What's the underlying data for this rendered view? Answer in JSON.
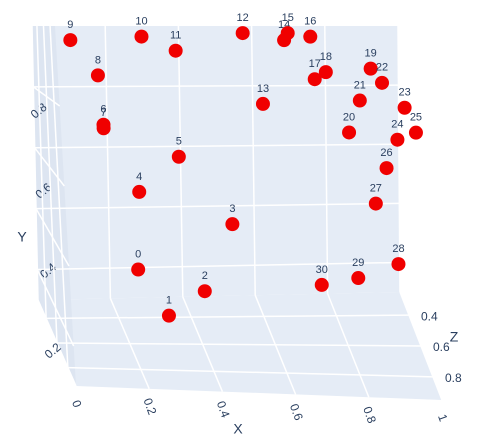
{
  "chart_data": {
    "type": "scatter3d",
    "xlabel": "X",
    "ylabel": "Y",
    "zlabel": "Z",
    "text": [
      "0",
      "1",
      "2",
      "3",
      "4",
      "5",
      "6",
      "7",
      "8",
      "9",
      "10",
      "11",
      "12",
      "13",
      "14",
      "15",
      "16",
      "17",
      "18",
      "19",
      "20",
      "21",
      "22",
      "23",
      "24",
      "25",
      "26",
      "27",
      "28",
      "29",
      "30"
    ],
    "x": [
      0.23,
      0.31,
      0.41,
      0.49,
      0.24,
      0.35,
      0.15,
      0.15,
      0.14,
      0.07,
      0.26,
      0.35,
      0.53,
      0.58,
      0.64,
      0.65,
      0.71,
      0.72,
      0.75,
      0.87,
      0.81,
      0.84,
      0.9,
      0.96,
      0.94,
      0.99,
      0.91,
      0.88,
      0.94,
      0.83,
      0.73
    ],
    "y": [
      0.31,
      0.18,
      0.25,
      0.44,
      0.53,
      0.63,
      0.72,
      0.71,
      0.86,
      0.96,
      0.97,
      0.93,
      0.98,
      0.78,
      0.96,
      0.98,
      0.97,
      0.85,
      0.87,
      0.88,
      0.7,
      0.79,
      0.84,
      0.77,
      0.68,
      0.7,
      0.6,
      0.5,
      0.33,
      0.29,
      0.27
    ],
    "z": [
      0.6,
      0.6,
      0.6,
      0.6,
      0.6,
      0.6,
      0.6,
      0.6,
      0.6,
      0.6,
      0.6,
      0.6,
      0.6,
      0.6,
      0.6,
      0.6,
      0.6,
      0.6,
      0.6,
      0.6,
      0.6,
      0.6,
      0.6,
      0.6,
      0.6,
      0.6,
      0.6,
      0.6,
      0.6,
      0.6,
      0.6
    ],
    "color": "#f00000",
    "xlim": [
      0,
      1
    ],
    "ylim": [
      0.1,
      1
    ],
    "zlim": [
      0.25,
      0.95
    ],
    "xticks": [
      0,
      0.2,
      0.4,
      0.6,
      0.8,
      1
    ],
    "yticks": [
      0.2,
      0.4,
      0.6,
      0.8
    ],
    "zticks": [
      0.4,
      0.6,
      0.8
    ],
    "grid": true
  }
}
